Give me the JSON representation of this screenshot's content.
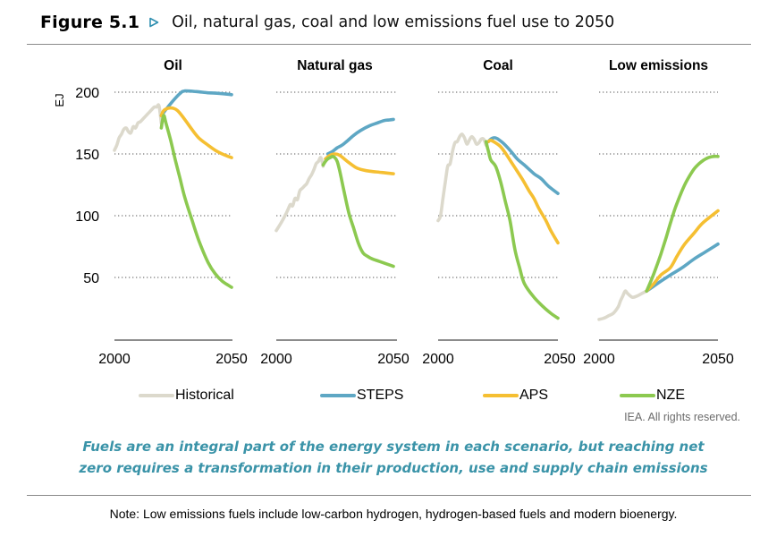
{
  "figure": {
    "label": "Figure 5.1",
    "icon": "play-triangle-icon",
    "title": "Oil, natural gas, coal and low emissions fuel use to 2050",
    "accent_color": "#2f8fb0"
  },
  "legend": [
    {
      "name": "Historical",
      "color": "#dcd9cc"
    },
    {
      "name": "STEPS",
      "color": "#5ea7c4"
    },
    {
      "name": "APS",
      "color": "#f5bf32"
    },
    {
      "name": "NZE",
      "color": "#8cc950"
    }
  ],
  "credit": "IEA. All rights reserved.",
  "caption": {
    "line1": "Fuels are an integral part of the energy system in each scenario, but reaching net",
    "line2": "zero requires a transformation in their production, use and supply chain emissions",
    "color": "#3a93a8"
  },
  "note": "Note: Low emissions fuels include low-carbon hydrogen, hydrogen-based fuels and modern bioenergy.",
  "chart_data": {
    "type": "line",
    "ylabel": "EJ",
    "ylim": [
      0,
      200
    ],
    "yticks": [
      50,
      100,
      150,
      200
    ],
    "xlim": [
      2000,
      2050
    ],
    "xticks": [
      "2000",
      "2050"
    ],
    "grid": "dotted horizontal",
    "legend_position": "bottom",
    "panels": [
      {
        "title": "Oil",
        "series": [
          {
            "name": "Historical",
            "x": [
              2000,
              2001,
              2002,
              2003,
              2004,
              2005,
              2006,
              2007,
              2008,
              2009,
              2010,
              2011,
              2012,
              2013,
              2014,
              2015,
              2016,
              2017,
              2018,
              2019,
              2020
            ],
            "values": [
              153,
              157,
              163,
              166,
              170,
              171,
              168,
              167,
              172,
              171,
              175,
              176,
              178,
              180,
              182,
              184,
              186,
              188,
              188,
              189,
              175
            ]
          },
          {
            "name": "STEPS",
            "x": [
              2020,
              2022,
              2025,
              2028,
              2030,
              2035,
              2040,
              2045,
              2050
            ],
            "values": [
              181,
              186,
              193,
              199,
              201,
              200.5,
              199.5,
              199,
              198
            ]
          },
          {
            "name": "APS",
            "x": [
              2020,
              2021,
              2023,
              2025,
              2027,
              2030,
              2033,
              2036,
              2040,
              2043,
              2046,
              2050
            ],
            "values": [
              181,
              185,
              187,
              187,
              185,
              178,
              170,
              163,
              157,
              153,
              150,
              147
            ]
          },
          {
            "name": "NZE",
            "x": [
              2020,
              2021,
              2022,
              2024,
              2026,
              2028,
              2030,
              2033,
              2036,
              2040,
              2043,
              2046,
              2050
            ],
            "values": [
              171,
              181,
              175,
              161,
              145,
              130,
              115,
              97,
              80,
              62,
              53,
              47,
              42
            ]
          }
        ]
      },
      {
        "title": "Natural gas",
        "series": [
          {
            "name": "Historical",
            "x": [
              2000,
              2002,
              2004,
              2005,
              2006,
              2007,
              2008,
              2009,
              2010,
              2011,
              2012,
              2013,
              2014,
              2015,
              2016,
              2017,
              2018,
              2019,
              2020
            ],
            "values": [
              88,
              94,
              101,
              105,
              109,
              108,
              114,
              113,
              120,
              122,
              124,
              126,
              130,
              133,
              137,
              142,
              144,
              147,
              140
            ]
          },
          {
            "name": "STEPS",
            "x": [
              2022,
              2024,
              2026,
              2028,
              2030,
              2033,
              2036,
              2040,
              2043,
              2046,
              2048,
              2050
            ],
            "values": [
              150,
              152,
              155,
              157,
              160,
              165,
              169,
              173,
              175,
              177,
              177.5,
              178
            ]
          },
          {
            "name": "APS",
            "x": [
              2021,
              2023,
              2025,
              2027,
              2029,
              2031,
              2034,
              2037,
              2040,
              2045,
              2050
            ],
            "values": [
              146,
              149,
              150,
              149,
              146,
              143,
              139,
              137,
              136,
              135,
              134
            ]
          },
          {
            "name": "NZE",
            "x": [
              2020,
              2021,
              2022,
              2023,
              2024,
              2025,
              2026,
              2027,
              2029,
              2031,
              2033,
              2035,
              2037,
              2039,
              2041,
              2044,
              2047,
              2050
            ],
            "values": [
              141,
              144,
              146,
              147,
              148,
              147,
              144,
              137,
              119,
              102,
              90,
              78,
              70,
              67,
              65,
              63,
              61,
              59
            ]
          }
        ]
      },
      {
        "title": "Coal",
        "series": [
          {
            "name": "Historical",
            "x": [
              2000,
              2001,
              2002,
              2003,
              2004,
              2005,
              2006,
              2007,
              2008,
              2009,
              2010,
              2011,
              2012,
              2013,
              2014,
              2015,
              2016,
              2017,
              2018,
              2019,
              2020
            ],
            "values": [
              96,
              100,
              114,
              127,
              140,
              142,
              152,
              159,
              160,
              164,
              166,
              163,
              158,
              161,
              164,
              162,
              158,
              159,
              162,
              162,
              157
            ]
          },
          {
            "name": "STEPS",
            "x": [
              2021,
              2022,
              2023,
              2024,
              2025,
              2027,
              2030,
              2033,
              2036,
              2040,
              2043,
              2046,
              2050
            ],
            "values": [
              160,
              162,
              163,
              163,
              162,
              159,
              153,
              146,
              141,
              134,
              130,
              124,
              118
            ]
          },
          {
            "name": "APS",
            "x": [
              2021,
              2022,
              2024,
              2026,
              2028,
              2030,
              2032,
              2035,
              2038,
              2040,
              2042,
              2045,
              2047,
              2050
            ],
            "values": [
              160,
              161,
              159,
              156,
              151,
              145,
              139,
              130,
              120,
              114,
              106,
              96,
              88,
              78
            ]
          },
          {
            "name": "NZE",
            "x": [
              2020,
              2021,
              2022,
              2024,
              2026,
              2028,
              2030,
              2032,
              2034,
              2036,
              2040,
              2044,
              2047,
              2050
            ],
            "values": [
              160,
              152,
              145,
              140,
              128,
              112,
              96,
              73,
              58,
              45,
              34,
              26,
              21,
              17
            ]
          }
        ]
      },
      {
        "title": "Low emissions",
        "series": [
          {
            "name": "Historical",
            "x": [
              2000,
              2002,
              2004,
              2006,
              2008,
              2009,
              2010,
              2011,
              2012,
              2014,
              2016,
              2018,
              2020
            ],
            "values": [
              16,
              17,
              19,
              21,
              26,
              31,
              35,
              39,
              37,
              34,
              35,
              37,
              39
            ]
          },
          {
            "name": "STEPS",
            "x": [
              2020,
              2023,
              2026,
              2030,
              2035,
              2040,
              2045,
              2050
            ],
            "values": [
              39,
              43,
              47,
              52,
              58,
              65,
              71,
              77
            ]
          },
          {
            "name": "APS",
            "x": [
              2020,
              2023,
              2026,
              2030,
              2033,
              2036,
              2040,
              2043,
              2046,
              2050
            ],
            "values": [
              39,
              45,
              52,
              58,
              68,
              77,
              86,
              93,
              98,
              104
            ]
          },
          {
            "name": "NZE",
            "x": [
              2020,
              2022,
              2024,
              2026,
              2028,
              2030,
              2032,
              2034,
              2036,
              2038,
              2040,
              2042,
              2044,
              2046,
              2048,
              2050
            ],
            "values": [
              39,
              48,
              58,
              69,
              81,
              94,
              106,
              116,
              125,
              132,
              138,
              142,
              145,
              147,
              148,
              148
            ]
          }
        ]
      }
    ]
  }
}
